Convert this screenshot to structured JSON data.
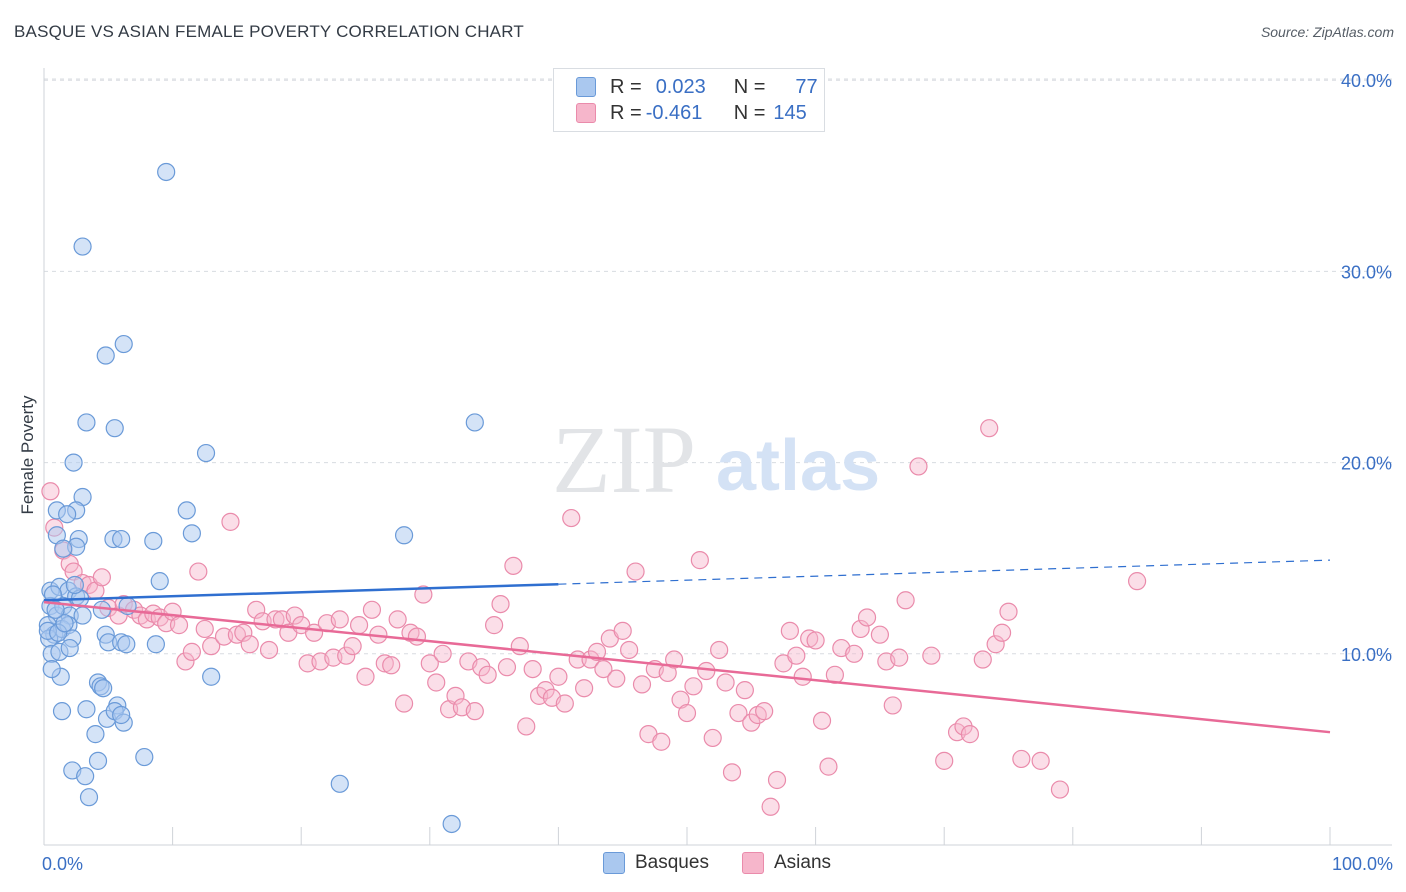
{
  "header": {
    "title": "BASQUE VS ASIAN FEMALE POVERTY CORRELATION CHART",
    "source": "Source: ZipAtlas.com"
  },
  "legend": {
    "rows": [
      {
        "r_label": "R =",
        "r_value": "0.023",
        "n_label": "N =",
        "n_value": "77"
      },
      {
        "r_label": "R =",
        "r_value": "-0.461",
        "n_label": "N =",
        "n_value": "145"
      }
    ]
  },
  "bottom_legend": [
    "Basques",
    "Asians"
  ],
  "colors": {
    "basque_fill": "#aac8ef",
    "basque_stroke": "#6a9ad8",
    "basque_line": "#2f6fd0",
    "asian_fill": "#f6b6cb",
    "asian_stroke": "#ea8bab",
    "asian_line": "#e86a97",
    "tick_label": "#3a6fc4",
    "grid": "#d8dce1"
  },
  "watermark": {
    "zip": "ZIP",
    "atlas": "atlas"
  },
  "chart_data": {
    "type": "scatter",
    "title": "BASQUE VS ASIAN FEMALE POVERTY CORRELATION CHART",
    "xlabel": "",
    "ylabel": "Female Poverty",
    "xlim": [
      0,
      100
    ],
    "ylim": [
      0,
      40
    ],
    "x_tick_labels": [
      "0.0%",
      "100.0%"
    ],
    "y_ticks": [
      10,
      20,
      30,
      40
    ],
    "y_tick_labels": [
      "10.0%",
      "20.0%",
      "30.0%",
      "40.0%"
    ],
    "grid": true,
    "series": [
      {
        "name": "Basques",
        "points": [
          [
            9.5,
            35.2
          ],
          [
            3,
            31.3
          ],
          [
            6.2,
            26.2
          ],
          [
            4.8,
            25.6
          ],
          [
            33.5,
            22.1
          ],
          [
            3.3,
            22.1
          ],
          [
            5.5,
            21.8
          ],
          [
            12.6,
            20.5
          ],
          [
            2.3,
            20
          ],
          [
            3,
            18.2
          ],
          [
            1,
            17.5
          ],
          [
            2.5,
            17.5
          ],
          [
            11.1,
            17.5
          ],
          [
            1.8,
            17.3
          ],
          [
            1,
            16.2
          ],
          [
            28,
            16.2
          ],
          [
            2.7,
            16
          ],
          [
            5.4,
            16
          ],
          [
            6,
            16
          ],
          [
            8.5,
            15.9
          ],
          [
            11.5,
            16.3
          ],
          [
            2.5,
            15.6
          ],
          [
            1.5,
            15.5
          ],
          [
            0.5,
            13.3
          ],
          [
            1.2,
            13.5
          ],
          [
            1.9,
            13.3
          ],
          [
            2.5,
            13
          ],
          [
            9,
            13.8
          ],
          [
            0.5,
            12.5
          ],
          [
            1,
            12
          ],
          [
            1.5,
            12.5
          ],
          [
            2,
            12
          ],
          [
            3,
            12
          ],
          [
            4.5,
            12.3
          ],
          [
            6.5,
            12.5
          ],
          [
            0.3,
            11.5
          ],
          [
            0.8,
            11
          ],
          [
            1.4,
            11.3
          ],
          [
            1.9,
            11.5
          ],
          [
            0.4,
            10.8
          ],
          [
            2.2,
            10.8
          ],
          [
            4.8,
            11
          ],
          [
            0.6,
            10
          ],
          [
            1.2,
            10.1
          ],
          [
            2,
            10.3
          ],
          [
            5,
            10.6
          ],
          [
            6,
            10.6
          ],
          [
            6.4,
            10.5
          ],
          [
            0.3,
            11.2
          ],
          [
            1.1,
            11.1
          ],
          [
            1.3,
            8.8
          ],
          [
            4.2,
            8.5
          ],
          [
            4.4,
            8.3
          ],
          [
            13,
            8.8
          ],
          [
            5.7,
            7.3
          ],
          [
            1.4,
            7
          ],
          [
            3.3,
            7.1
          ],
          [
            4.9,
            6.6
          ],
          [
            5.5,
            7
          ],
          [
            6.2,
            6.4
          ],
          [
            4,
            5.8
          ],
          [
            4.2,
            4.4
          ],
          [
            7.8,
            4.6
          ],
          [
            2.2,
            3.9
          ],
          [
            3.2,
            3.6
          ],
          [
            23,
            3.2
          ],
          [
            3.5,
            2.5
          ],
          [
            31.7,
            1.1
          ],
          [
            0.7,
            13.1
          ],
          [
            2.8,
            12.9
          ],
          [
            1.6,
            11.6
          ],
          [
            0.9,
            12.3
          ],
          [
            2.4,
            13.6
          ],
          [
            4.6,
            8.2
          ],
          [
            6,
            6.8
          ],
          [
            0.6,
            9.2
          ],
          [
            8.7,
            10.5
          ]
        ]
      },
      {
        "name": "Asians",
        "points": [
          [
            0.5,
            18.5
          ],
          [
            0.8,
            16.6
          ],
          [
            1.5,
            15.4
          ],
          [
            2,
            14.7
          ],
          [
            2.3,
            14.3
          ],
          [
            3,
            13.7
          ],
          [
            3.5,
            13.6
          ],
          [
            4,
            13.3
          ],
          [
            4.5,
            14
          ],
          [
            5,
            12.4
          ],
          [
            5.8,
            12
          ],
          [
            6.2,
            12.6
          ],
          [
            7,
            12.3
          ],
          [
            7.5,
            12
          ],
          [
            8,
            11.8
          ],
          [
            8.5,
            12.1
          ],
          [
            9,
            11.9
          ],
          [
            9.5,
            11.6
          ],
          [
            10,
            12.2
          ],
          [
            10.5,
            11.5
          ],
          [
            11,
            9.6
          ],
          [
            11.5,
            10.1
          ],
          [
            12,
            14.3
          ],
          [
            12.5,
            11.3
          ],
          [
            13,
            10.4
          ],
          [
            14,
            10.9
          ],
          [
            15,
            11
          ],
          [
            14.5,
            16.9
          ],
          [
            15.5,
            11.1
          ],
          [
            16,
            10.5
          ],
          [
            16.5,
            12.3
          ],
          [
            17,
            11.7
          ],
          [
            17.5,
            10.2
          ],
          [
            18,
            11.8
          ],
          [
            18.5,
            11.8
          ],
          [
            19,
            11.1
          ],
          [
            19.5,
            12
          ],
          [
            20,
            11.5
          ],
          [
            20.5,
            9.5
          ],
          [
            21,
            11.1
          ],
          [
            21.5,
            9.6
          ],
          [
            22,
            11.6
          ],
          [
            22.5,
            9.8
          ],
          [
            23,
            11.8
          ],
          [
            23.5,
            9.9
          ],
          [
            24,
            10.4
          ],
          [
            24.5,
            11.5
          ],
          [
            25,
            8.8
          ],
          [
            25.5,
            12.3
          ],
          [
            26,
            11
          ],
          [
            26.5,
            9.5
          ],
          [
            27,
            9.4
          ],
          [
            27.5,
            11.8
          ],
          [
            28,
            7.4
          ],
          [
            28.5,
            11.1
          ],
          [
            29,
            10.9
          ],
          [
            29.5,
            13.1
          ],
          [
            30,
            9.5
          ],
          [
            30.5,
            8.5
          ],
          [
            31,
            10
          ],
          [
            31.5,
            7.1
          ],
          [
            32,
            7.8
          ],
          [
            32.5,
            7.2
          ],
          [
            33,
            9.6
          ],
          [
            33.5,
            7
          ],
          [
            34,
            9.3
          ],
          [
            34.5,
            8.9
          ],
          [
            35,
            11.5
          ],
          [
            35.5,
            12.6
          ],
          [
            36,
            9.3
          ],
          [
            36.5,
            14.6
          ],
          [
            37,
            10.4
          ],
          [
            37.5,
            6.2
          ],
          [
            38,
            9.2
          ],
          [
            38.5,
            7.8
          ],
          [
            39,
            8.1
          ],
          [
            39.5,
            7.7
          ],
          [
            40,
            8.8
          ],
          [
            40.5,
            7.4
          ],
          [
            41,
            17.1
          ],
          [
            41.5,
            9.7
          ],
          [
            42,
            8.2
          ],
          [
            42.5,
            9.7
          ],
          [
            43,
            10.1
          ],
          [
            43.5,
            9.2
          ],
          [
            44,
            10.8
          ],
          [
            44.5,
            8.7
          ],
          [
            45,
            11.2
          ],
          [
            45.5,
            10.2
          ],
          [
            46,
            14.3
          ],
          [
            46.5,
            8.4
          ],
          [
            47,
            5.8
          ],
          [
            47.5,
            9.2
          ],
          [
            48,
            5.4
          ],
          [
            48.5,
            9
          ],
          [
            49,
            9.7
          ],
          [
            49.5,
            7.6
          ],
          [
            50,
            6.9
          ],
          [
            50.5,
            8.3
          ],
          [
            51,
            14.9
          ],
          [
            51.5,
            9.1
          ],
          [
            52,
            5.6
          ],
          [
            52.5,
            10.2
          ],
          [
            53,
            8.5
          ],
          [
            53.5,
            3.8
          ],
          [
            54,
            6.9
          ],
          [
            54.5,
            8.1
          ],
          [
            55,
            6.4
          ],
          [
            55.5,
            6.8
          ],
          [
            56,
            7
          ],
          [
            56.5,
            2
          ],
          [
            57,
            3.4
          ],
          [
            57.5,
            9.5
          ],
          [
            58,
            11.2
          ],
          [
            58.5,
            9.9
          ],
          [
            59,
            8.8
          ],
          [
            59.5,
            10.8
          ],
          [
            60,
            10.7
          ],
          [
            60.5,
            6.5
          ],
          [
            61,
            4.1
          ],
          [
            61.5,
            8.9
          ],
          [
            62,
            10.3
          ],
          [
            63,
            10
          ],
          [
            63.5,
            11.3
          ],
          [
            64,
            11.9
          ],
          [
            65,
            11
          ],
          [
            65.5,
            9.6
          ],
          [
            66,
            7.3
          ],
          [
            66.5,
            9.8
          ],
          [
            67,
            12.8
          ],
          [
            68,
            19.8
          ],
          [
            69,
            9.9
          ],
          [
            70,
            4.4
          ],
          [
            71,
            5.9
          ],
          [
            71.5,
            6.2
          ],
          [
            72,
            5.8
          ],
          [
            73,
            9.7
          ],
          [
            73.5,
            21.8
          ],
          [
            74,
            10.5
          ],
          [
            74.5,
            11.1
          ],
          [
            75,
            12.2
          ],
          [
            76,
            4.5
          ],
          [
            77.5,
            4.4
          ],
          [
            79,
            2.9
          ],
          [
            85,
            13.8
          ]
        ]
      }
    ],
    "trendlines": [
      {
        "series": "Basques",
        "x": [
          0,
          100
        ],
        "y": [
          12.8,
          14.9
        ],
        "solid_until_x": 40
      },
      {
        "series": "Asians",
        "x": [
          0,
          100
        ],
        "y": [
          12.7,
          5.9
        ]
      }
    ]
  }
}
